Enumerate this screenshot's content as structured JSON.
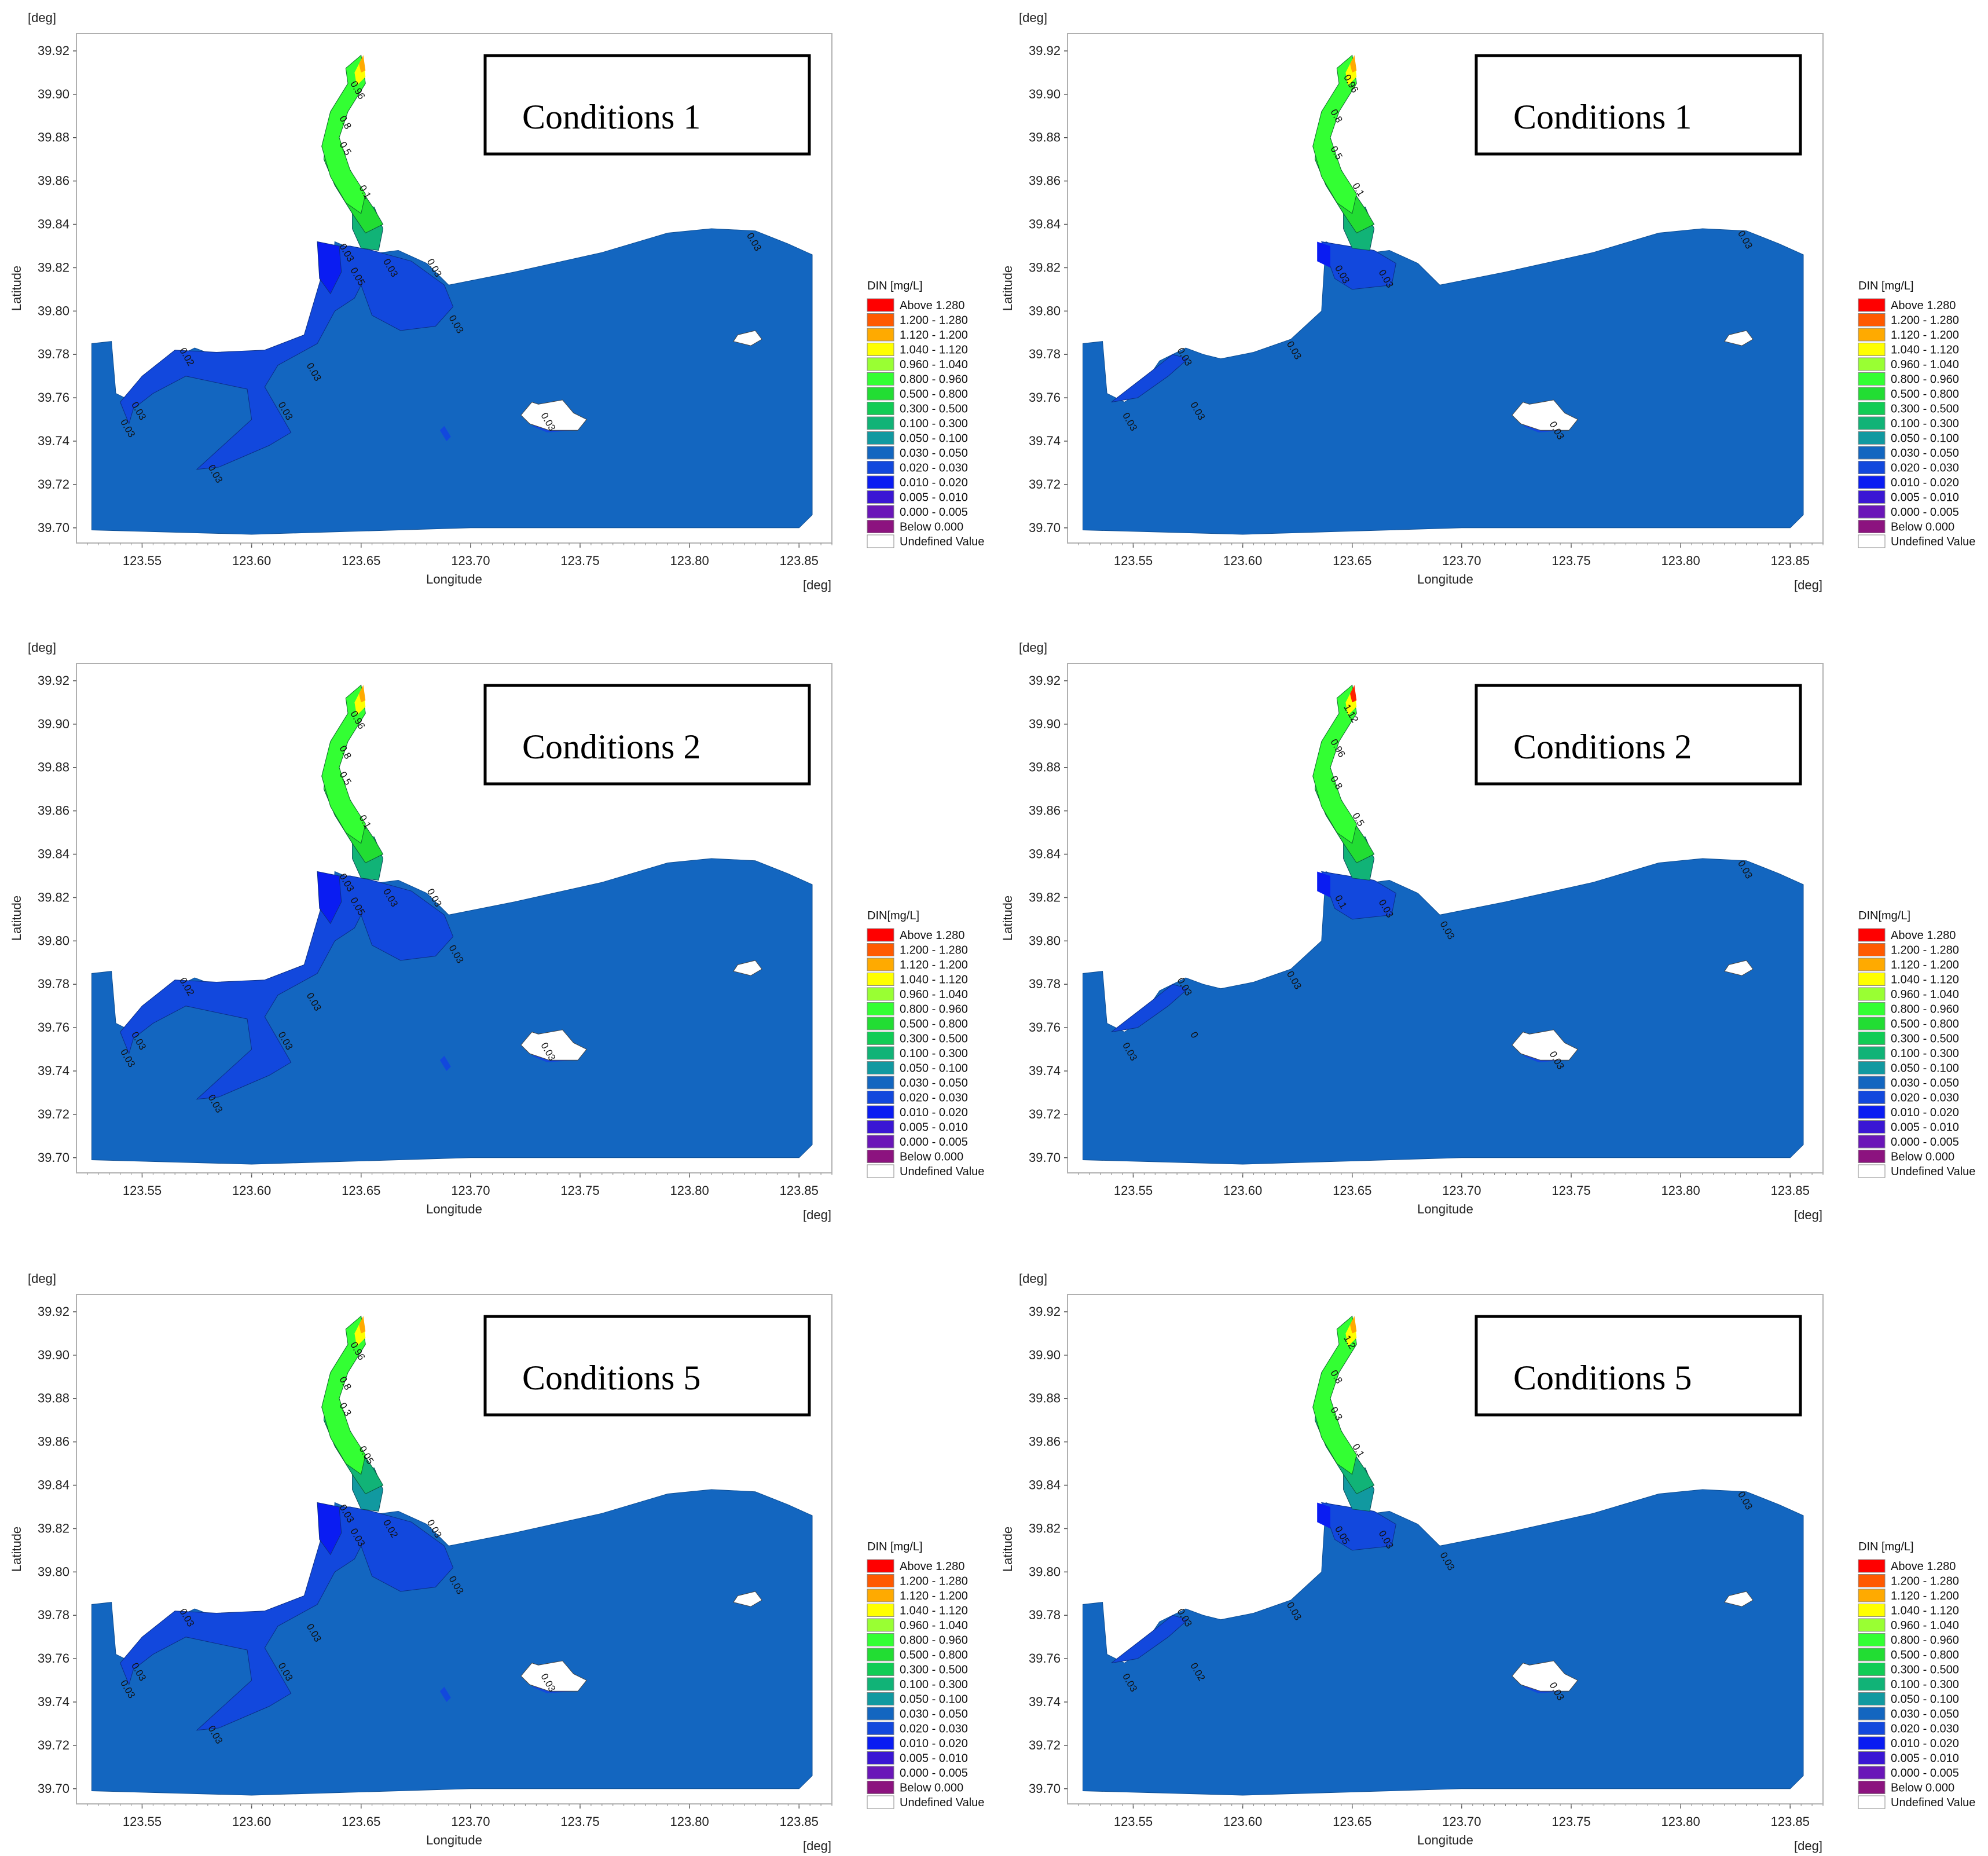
{
  "figure": {
    "panels": [
      {
        "condition_label": "Conditions 1",
        "legend_title": "DIN [mg/L]",
        "variant": "a",
        "scenario": 1,
        "contour_labels": [
          "0.96",
          "0.8",
          "0.5",
          "0.1",
          "0.03",
          "0.05",
          "0.03",
          "0.03",
          "0.03",
          "0.02",
          "0.03",
          "0.03",
          "0.03",
          "0.03",
          "0.03",
          "0.03",
          "0.03"
        ]
      },
      {
        "condition_label": "Conditions 1",
        "legend_title": "DIN [mg/L]",
        "variant": "b",
        "scenario": 1,
        "contour_labels": [
          "0.96",
          "0.8",
          "0.5",
          "0.1",
          "0.03",
          "0.03",
          "0.03",
          "0.03",
          "0.03",
          "0.03",
          "0.03",
          "0.03"
        ]
      },
      {
        "condition_label": "Conditions 2",
        "legend_title": "DIN[mg/L]",
        "variant": "a",
        "scenario": 2,
        "contour_labels": [
          "0.96",
          "0.8",
          "0.5",
          "0.1",
          "0.03",
          "0.05",
          "0.03",
          "0.03",
          "0.03",
          "0.02",
          "0.03",
          "0.03",
          "0.03",
          "0.03",
          "0.03",
          "0.03"
        ]
      },
      {
        "condition_label": "Conditions 2",
        "legend_title": "DIN[mg/L]",
        "variant": "b",
        "scenario": 2,
        "contour_labels": [
          "1.12",
          "0.96",
          "0.8",
          "0.5",
          "0.1",
          "0.03",
          "0.03",
          "0.03",
          "0",
          "0.03",
          "0.03",
          "0.03",
          "0.03"
        ]
      },
      {
        "condition_label": "Conditions 5",
        "legend_title": "DIN [mg/L]",
        "variant": "a",
        "scenario": 5,
        "contour_labels": [
          "0.96",
          "0.8",
          "0.3",
          "0.05",
          "0.03",
          "0.03",
          "0.02",
          "0.03",
          "0.03",
          "0.03",
          "0.03",
          "0.03",
          "0.03",
          "0.03",
          "0.03",
          "0.03"
        ]
      },
      {
        "condition_label": "Conditions 5",
        "legend_title": "DIN [mg/L]",
        "variant": "b",
        "scenario": 5,
        "contour_labels": [
          "1.2",
          "0.8",
          "0.3",
          "0.1",
          "0.05",
          "0.03",
          "0.03",
          "0.03",
          "0.02",
          "0.03",
          "0.03",
          "0.03",
          "0.03"
        ]
      }
    ],
    "axes": {
      "xlabel": "Longitude",
      "ylabel": "Latitude",
      "x_unit": "[deg]",
      "y_unit": "[deg]",
      "x_ticks": [
        "123.55",
        "123.60",
        "123.65",
        "123.70",
        "123.75",
        "123.80",
        "123.85"
      ],
      "y_ticks": [
        "39.92",
        "39.90",
        "39.88",
        "39.86",
        "39.84",
        "39.82",
        "39.80",
        "39.78",
        "39.76",
        "39.74",
        "39.72",
        "39.70"
      ],
      "xlim": [
        123.52,
        123.865
      ],
      "ylim": [
        39.693,
        39.928
      ]
    },
    "legend_items": [
      {
        "label": "Above  1.280",
        "color": "#ff0000"
      },
      {
        "label": "1.200 - 1.280",
        "color": "#ff5a00"
      },
      {
        "label": "1.120 - 1.200",
        "color": "#ffaa00"
      },
      {
        "label": "1.040 - 1.120",
        "color": "#ffff00"
      },
      {
        "label": "0.960 - 1.040",
        "color": "#99ff33"
      },
      {
        "label": "0.800 - 0.960",
        "color": "#33ff33"
      },
      {
        "label": "0.500 - 0.800",
        "color": "#22dd33"
      },
      {
        "label": "0.300 - 0.500",
        "color": "#11cc55"
      },
      {
        "label": "0.100 - 0.300",
        "color": "#11b377"
      },
      {
        "label": "0.050 - 0.100",
        "color": "#1199a0"
      },
      {
        "label": "0.030 - 0.050",
        "color": "#1366c0"
      },
      {
        "label": "0.020 - 0.030",
        "color": "#1248dd"
      },
      {
        "label": "0.010 - 0.020",
        "color": "#0a1cf2"
      },
      {
        "label": "0.005 - 0.010",
        "color": "#3a16d4"
      },
      {
        "label": "0.000 - 0.005",
        "color": "#6a16b8"
      },
      {
        "label": "Below  0.000",
        "color": "#8c137f"
      },
      {
        "label": "Undefined Value",
        "color": "#ffffff"
      }
    ],
    "colors": {
      "base_water": "#1366c0",
      "plume_020_030": "#1248dd",
      "plume_010_020": "#0a1cf2",
      "river_high": "#33ff33",
      "river_mid": "#22dd33",
      "river_low": "#11b377",
      "river_teal": "#1199a0",
      "yellow": "#ffff00",
      "orange": "#ffaa00",
      "red": "#ff2200"
    }
  }
}
